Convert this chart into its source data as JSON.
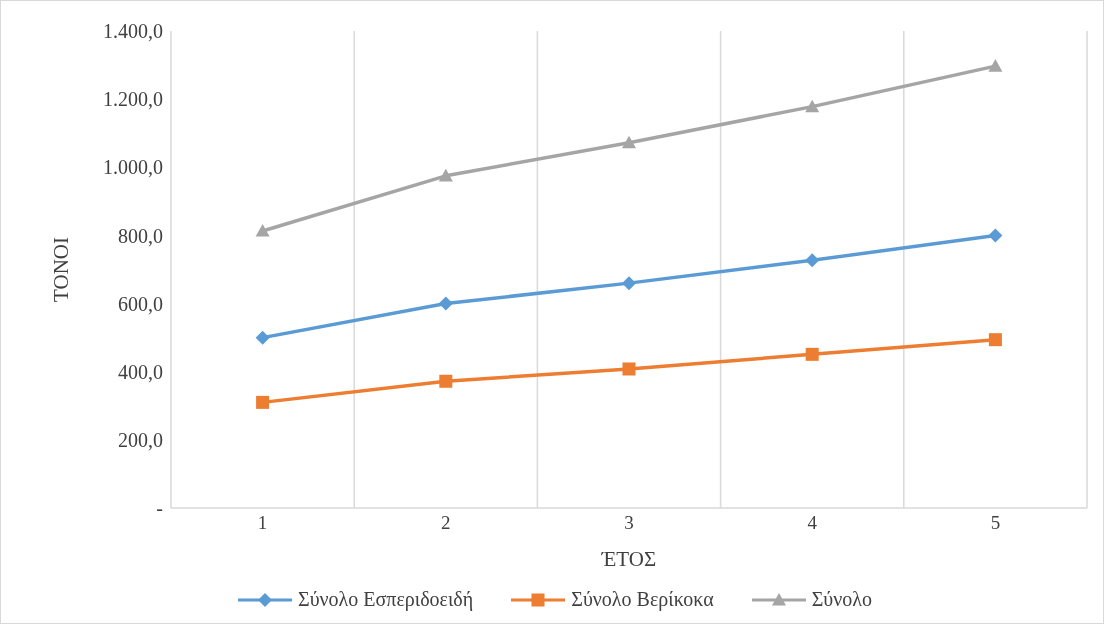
{
  "chart_data": {
    "type": "line",
    "xlabel": "ΈΤΟΣ",
    "ylabel": "ΤΟΝΟΙ",
    "categories": [
      "1",
      "2",
      "3",
      "4",
      "5"
    ],
    "series": [
      {
        "name": "Σύνολο Εσπεριδοειδή",
        "color": "#5b9bd5",
        "marker": "diamond",
        "values": [
          500,
          600,
          660,
          727,
          800
        ]
      },
      {
        "name": "Σύνολο Βερίκοκα",
        "color": "#ed7d31",
        "marker": "square",
        "values": [
          310,
          372,
          408,
          451,
          494
        ]
      },
      {
        "name": "Σύνολο",
        "color": "#a5a5a5",
        "marker": "triangle",
        "values": [
          813,
          975,
          1072,
          1178,
          1297
        ]
      }
    ],
    "ylim": [
      0,
      1400
    ],
    "yticks": [
      {
        "value": 0,
        "label": "-"
      },
      {
        "value": 200,
        "label": "200,0"
      },
      {
        "value": 400,
        "label": "400,0"
      },
      {
        "value": 600,
        "label": "600,0"
      },
      {
        "value": 800,
        "label": "800,0"
      },
      {
        "value": 1000,
        "label": "1.000,0"
      },
      {
        "value": 1200,
        "label": "1.200,0"
      },
      {
        "value": 1400,
        "label": "1.400,0"
      }
    ],
    "grid": "x",
    "legend": "bottom"
  }
}
